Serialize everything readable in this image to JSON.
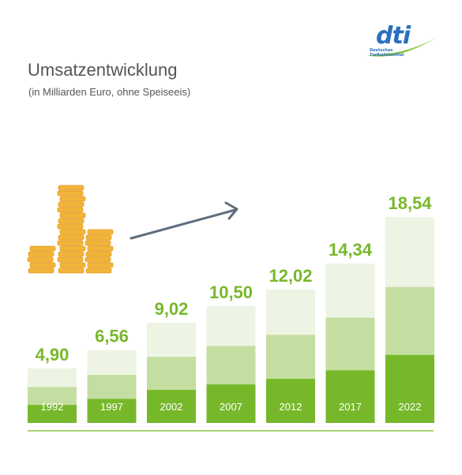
{
  "logo": {
    "brand": "dti",
    "tagline_line1": "Deutsches",
    "tagline_line2": "Tiefkühlinstitut",
    "colors": {
      "blue": "#2a6fc0",
      "green": "#8cc63f"
    }
  },
  "decoration": {
    "icons": [
      "coin-stacks-icon",
      "trend-arrow-icon"
    ]
  },
  "colors": {
    "bar_dark": "#77b82a",
    "bar_mid": "#c4dea1",
    "bar_light": "#eef4e3",
    "value_label": "#77b82a",
    "year_label": "#ffffff",
    "baseline": "#8cc63f",
    "arrow": "#5f6e7d",
    "coin": "#f2b43a"
  },
  "chart_data": {
    "type": "bar",
    "title": "Umsatzentwicklung",
    "subtitle": "(in Milliarden Euro, ohne Speiseeis)",
    "xlabel": "",
    "ylabel": "",
    "categories": [
      "1992",
      "1997",
      "2002",
      "2007",
      "2012",
      "2017",
      "2022"
    ],
    "values": [
      4.9,
      6.56,
      9.02,
      10.5,
      12.02,
      14.34,
      18.54
    ],
    "value_labels": [
      "4,90",
      "6,56",
      "9,02",
      "10,50",
      "12,02",
      "14,34",
      "18,54"
    ],
    "ylim": [
      0,
      18.54
    ],
    "grid": false,
    "legend": "none"
  }
}
